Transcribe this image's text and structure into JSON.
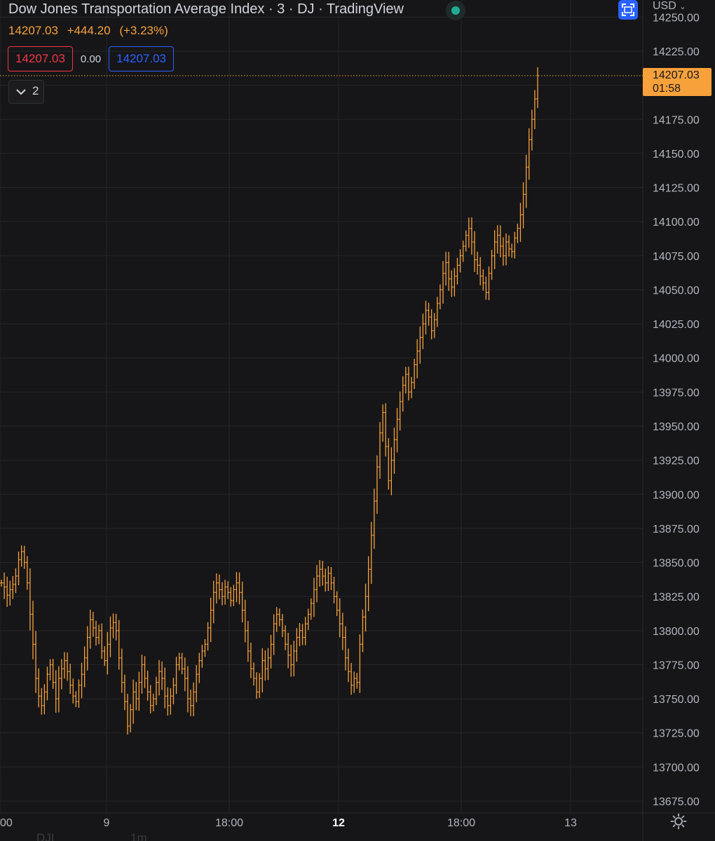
{
  "header": {
    "title": "Dow Jones Transportation Average Index · 3 · DJ  · TradingView",
    "currency": "USD",
    "last": "14207.03",
    "change": "+444.20",
    "change_pct": "(+3.23%)",
    "bid": "14207.03",
    "spread": "0.00",
    "ask": "14207.03",
    "indicator_count": "2"
  },
  "last_badge": {
    "price": "14207.03",
    "countdown": "01:58"
  },
  "footer": {
    "cut_labels": [
      "DJI",
      "1m"
    ]
  },
  "colors": {
    "background": "#161618",
    "bars": "#f7a13b",
    "grid": "#262629",
    "text": "#d1d4dc",
    "axis_text": "#b2b5be",
    "bid": "#f23645",
    "ask": "#2962ff",
    "status": "#22ab94"
  },
  "chart_data": {
    "type": "ohlc",
    "title": "Dow Jones Transportation Average Index",
    "interval": "3",
    "last_price": 14207.03,
    "ylim": [
      13665,
      14255
    ],
    "y_ticks": [
      13675,
      13700,
      13725,
      13750,
      13775,
      13800,
      13825,
      13850,
      13875,
      13900,
      13925,
      13950,
      13975,
      14000,
      14025,
      14050,
      14075,
      14100,
      14125,
      14150,
      14175,
      14200,
      14225,
      14250
    ],
    "y_tick_labels": [
      "13675.00",
      "13700.00",
      "13725.00",
      "13750.00",
      "13775.00",
      "13800.00",
      "13825.00",
      "13850.00",
      "13875.00",
      "13900.00",
      "13925.00",
      "13950.00",
      "13975.00",
      "14000.00",
      "14025.00",
      "14050.00",
      "14075.00",
      "14100.00",
      "14125.00",
      "14150.00",
      "14175.00",
      "14200.00",
      "14225.00",
      "14250.00"
    ],
    "x_ticks": [
      {
        "label": "00",
        "bold": false
      },
      {
        "label": "9",
        "bold": false
      },
      {
        "label": "18:00",
        "bold": false
      },
      {
        "label": "12",
        "bold": true
      },
      {
        "label": "18:00",
        "bold": false
      },
      {
        "label": "13",
        "bold": false
      }
    ],
    "grid": true,
    "price_series_note": "approximate close values read from chart, in chronological order",
    "closes": [
      13835,
      13832,
      13826,
      13830,
      13834,
      13840,
      13852,
      13858,
      13850,
      13835,
      13812,
      13790,
      13765,
      13752,
      13745,
      13755,
      13768,
      13775,
      13762,
      13750,
      13765,
      13772,
      13778,
      13770,
      13760,
      13752,
      13748,
      13760,
      13768,
      13780,
      13795,
      13808,
      13802,
      13795,
      13800,
      13785,
      13778,
      13790,
      13802,
      13806,
      13800,
      13780,
      13762,
      13748,
      13730,
      13742,
      13755,
      13750,
      13762,
      13775,
      13765,
      13755,
      13745,
      13750,
      13762,
      13770,
      13765,
      13752,
      13745,
      13752,
      13760,
      13775,
      13780,
      13772,
      13765,
      13750,
      13745,
      13755,
      13768,
      13778,
      13785,
      13790,
      13802,
      13815,
      13828,
      13835,
      13830,
      13825,
      13832,
      13828,
      13822,
      13830,
      13835,
      13828,
      13815,
      13800,
      13785,
      13772,
      13765,
      13755,
      13765,
      13778,
      13772,
      13780,
      13790,
      13805,
      13812,
      13808,
      13800,
      13790,
      13782,
      13775,
      13785,
      13795,
      13800,
      13795,
      13805,
      13812,
      13820,
      13830,
      13840,
      13845,
      13840,
      13835,
      13842,
      13835,
      13825,
      13815,
      13805,
      13795,
      13780,
      13770,
      13760,
      13765,
      13762,
      13790,
      13810,
      13825,
      13845,
      13870,
      13895,
      13920,
      13945,
      13960,
      13935,
      13910,
      13925,
      13940,
      13955,
      13968,
      13980,
      13988,
      13975,
      13982,
      13995,
      14005,
      14015,
      14025,
      14035,
      14030,
      14020,
      14028,
      14040,
      14050,
      14062,
      14070,
      14058,
      14052,
      14060,
      14068,
      14075,
      14082,
      14090,
      14095,
      14085,
      14072,
      14068,
      14060,
      14055,
      14048,
      14062,
      14075,
      14085,
      14090,
      14082,
      14075,
      14085,
      14080,
      14078,
      14088,
      14095,
      14105,
      14120,
      14140,
      14160,
      14175,
      14190,
      14207.03
    ]
  }
}
